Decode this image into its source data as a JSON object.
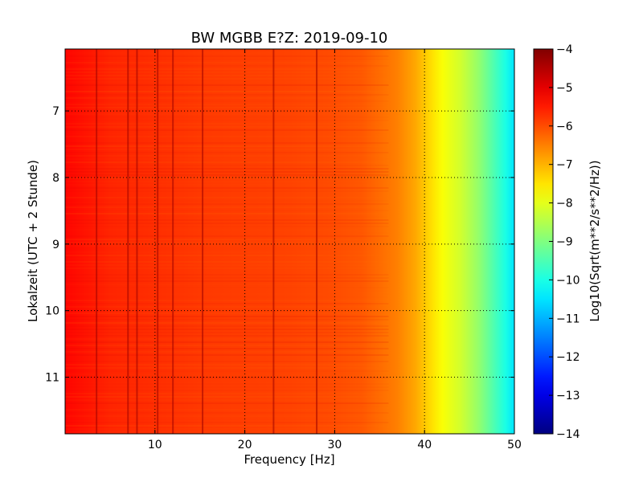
{
  "chart_data": {
    "type": "heatmap",
    "title": "BW MGBB E?Z: 2019-09-10",
    "xlabel": "Frequency [Hz]",
    "ylabel": "Lokalzeit (UTC + 2 Stunde)",
    "xlim": [
      0,
      50
    ],
    "ylim": [
      6.07,
      11.85
    ],
    "y_inverted": true,
    "x_ticks": [
      10,
      20,
      30,
      40,
      50
    ],
    "y_ticks": [
      7,
      8,
      9,
      10,
      11
    ],
    "grid": true,
    "colormap": "jet",
    "colorbar": {
      "label": "Log10(Sqrt(m**2/s**2/Hz))",
      "range": [
        -14,
        -4
      ],
      "ticks": [
        -4,
        -5,
        -6,
        -7,
        -8,
        -9,
        -10,
        -11,
        -12,
        -13,
        -14
      ]
    },
    "z_profile_vs_frequency": {
      "frequency_hz": [
        0,
        5,
        10,
        15,
        20,
        25,
        30,
        33,
        35,
        37,
        38,
        39,
        40,
        41,
        42,
        43,
        44,
        45,
        46,
        47,
        48,
        49,
        50
      ],
      "log10_amplitude": [
        -5.3,
        -5.6,
        -5.7,
        -5.8,
        -5.85,
        -5.9,
        -6.0,
        -6.1,
        -6.3,
        -6.5,
        -6.7,
        -6.9,
        -7.2,
        -7.5,
        -7.8,
        -8.0,
        -8.2,
        -8.5,
        -8.8,
        -9.2,
        -9.6,
        -10.0,
        -10.5
      ]
    },
    "spectral_lines_hz": [
      3.5,
      7.0,
      8.0,
      10.3,
      12.0,
      15.3,
      23.2,
      28.0
    ]
  }
}
